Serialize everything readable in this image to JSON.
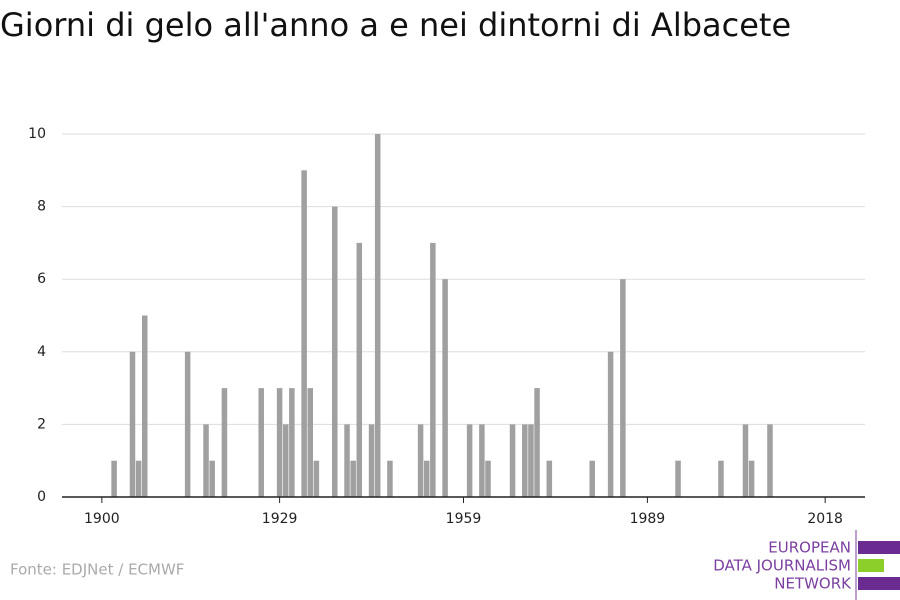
{
  "chart_data": {
    "type": "bar",
    "title": "Giorni di gelo all'anno a e nei dintorni di Albacete",
    "x": [
      1902,
      1905,
      1906,
      1907,
      1914,
      1917,
      1918,
      1920,
      1926,
      1929,
      1930,
      1931,
      1933,
      1934,
      1935,
      1938,
      1940,
      1941,
      1942,
      1944,
      1945,
      1947,
      1952,
      1953,
      1954,
      1956,
      1960,
      1962,
      1963,
      1967,
      1969,
      1970,
      1971,
      1973,
      1980,
      1983,
      1985,
      1994,
      2001,
      2005,
      2006,
      2009
    ],
    "values": [
      1,
      4,
      1,
      5,
      4,
      2,
      1,
      3,
      3,
      3,
      2,
      3,
      9,
      3,
      1,
      8,
      2,
      1,
      7,
      2,
      10,
      1,
      2,
      1,
      7,
      6,
      2,
      2,
      1,
      2,
      2,
      2,
      3,
      1,
      1,
      4,
      6,
      1,
      1,
      2,
      1,
      2
    ],
    "color": "#a0a0a0",
    "xlim": [
      1893.5,
      2024.5
    ],
    "xticks": [
      1900,
      1929,
      1959,
      1989,
      2018
    ],
    "ylim": [
      0,
      10
    ],
    "yticks": [
      0,
      2,
      4,
      6,
      8,
      10
    ],
    "grid": true
  },
  "footer": {
    "source": "Fonte: EDJNet / ECMWF",
    "logo": [
      "EUROPEAN",
      "DATA JOURNALISM",
      "NETWORK"
    ]
  }
}
